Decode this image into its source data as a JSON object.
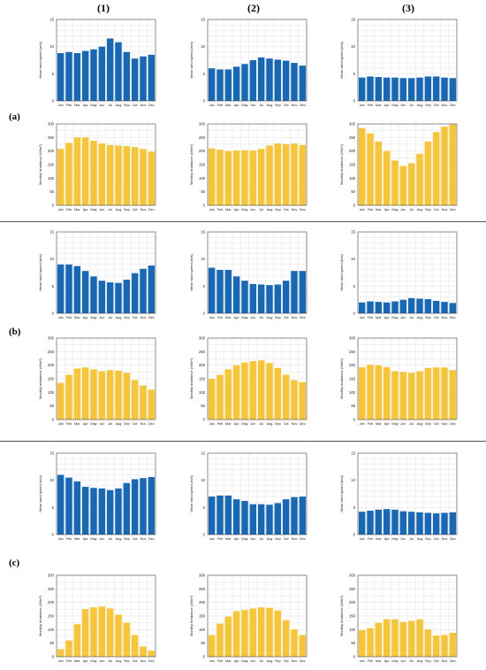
{
  "columns": [
    "(1)",
    "(2)",
    "(3)"
  ],
  "rows": [
    "(a)",
    "(b)",
    "(c)"
  ],
  "colors": {
    "wind": "#1769b7",
    "irradiance": "#f7c535",
    "grid": "#e3e3e3",
    "frame": "#444444"
  },
  "chart_data": [
    {
      "id": "a1-wind",
      "type": "bar",
      "categories": [
        "Jan",
        "Feb",
        "Mar",
        "Apr",
        "May",
        "Jun",
        "Jul",
        "Aug",
        "Sep",
        "Oct",
        "Nov",
        "Dec"
      ],
      "ylabel": "Mean wind speed (m/s)",
      "ylim": [
        0,
        15
      ],
      "yticks": [
        0,
        5,
        10,
        15
      ],
      "values": [
        8.8,
        9.0,
        8.8,
        9.2,
        9.5,
        10.0,
        11.5,
        10.8,
        9.0,
        7.8,
        8.2,
        8.5
      ]
    },
    {
      "id": "a1-irr",
      "type": "bar",
      "categories": [
        "Jan",
        "Feb",
        "Mar",
        "Apr",
        "May",
        "Jun",
        "Jul",
        "Aug",
        "Sep",
        "Oct",
        "Nov",
        "Dec"
      ],
      "ylabel": "Monthly irradiance (W/m²)",
      "ylim": [
        0,
        300
      ],
      "yticks": [
        0,
        50,
        100,
        150,
        200,
        250,
        300
      ],
      "values": [
        208,
        230,
        250,
        250,
        238,
        228,
        222,
        220,
        218,
        215,
        208,
        198
      ]
    },
    {
      "id": "a2-wind",
      "type": "bar",
      "categories": [
        "Jan",
        "Feb",
        "Mar",
        "Apr",
        "May",
        "Jun",
        "Jul",
        "Aug",
        "Sep",
        "Oct",
        "Nov",
        "Dec"
      ],
      "ylabel": "Mean wind speed (m/s)",
      "ylim": [
        0,
        15
      ],
      "yticks": [
        0,
        5,
        10,
        15
      ],
      "values": [
        6.0,
        5.8,
        5.8,
        6.3,
        6.8,
        7.5,
        8.0,
        7.8,
        7.6,
        7.4,
        7.0,
        6.5
      ]
    },
    {
      "id": "a2-irr",
      "type": "bar",
      "categories": [
        "Jan",
        "Feb",
        "Mar",
        "Apr",
        "May",
        "Jun",
        "Jul",
        "Aug",
        "Sep",
        "Oct",
        "Nov",
        "Dec"
      ],
      "ylabel": "Monthly irradiance (W/m²)",
      "ylim": [
        0,
        300
      ],
      "yticks": [
        0,
        50,
        100,
        150,
        200,
        250,
        300
      ],
      "values": [
        210,
        205,
        200,
        202,
        203,
        202,
        208,
        220,
        228,
        225,
        228,
        222
      ]
    },
    {
      "id": "a3-wind",
      "type": "bar",
      "categories": [
        "Jan",
        "Feb",
        "Mar",
        "Apr",
        "May",
        "Jun",
        "Jul",
        "Aug",
        "Sep",
        "Oct",
        "Nov",
        "Dec"
      ],
      "ylabel": "Mean wind speed (m/s)",
      "ylim": [
        0,
        15
      ],
      "yticks": [
        0,
        5,
        10,
        15
      ],
      "values": [
        4.3,
        4.5,
        4.4,
        4.3,
        4.3,
        4.2,
        4.2,
        4.3,
        4.5,
        4.5,
        4.3,
        4.2
      ]
    },
    {
      "id": "a3-irr",
      "type": "bar",
      "categories": [
        "Jan",
        "Feb",
        "Mar",
        "Apr",
        "May",
        "Jun",
        "Jul",
        "Aug",
        "Sep",
        "Oct",
        "Nov",
        "Dec"
      ],
      "ylabel": "Monthly irradiance (W/m²)",
      "ylim": [
        0,
        300
      ],
      "yticks": [
        0,
        50,
        100,
        150,
        200,
        250,
        300
      ],
      "values": [
        285,
        265,
        235,
        200,
        165,
        145,
        155,
        190,
        235,
        270,
        290,
        298
      ]
    },
    {
      "id": "b1-wind",
      "type": "bar",
      "categories": [
        "Jan",
        "Feb",
        "Mar",
        "Apr",
        "May",
        "Jun",
        "Jul",
        "Aug",
        "Sep",
        "Oct",
        "Nov",
        "Dec"
      ],
      "ylabel": "Mean wind speed (m/s)",
      "ylim": [
        0,
        15
      ],
      "yticks": [
        0,
        5,
        10,
        15
      ],
      "values": [
        9.0,
        9.0,
        8.7,
        7.8,
        6.8,
        6.0,
        5.7,
        5.6,
        6.2,
        7.4,
        8.2,
        8.8
      ]
    },
    {
      "id": "b1-irr",
      "type": "bar",
      "categories": [
        "Jan",
        "Feb",
        "Mar",
        "Apr",
        "May",
        "Jun",
        "Jul",
        "Aug",
        "Sep",
        "Oct",
        "Nov",
        "Dec"
      ],
      "ylabel": "Monthly irradiance (W/m²)",
      "ylim": [
        0,
        300
      ],
      "yticks": [
        0,
        50,
        100,
        150,
        200,
        250,
        300
      ],
      "values": [
        135,
        165,
        188,
        192,
        185,
        178,
        182,
        180,
        172,
        145,
        125,
        110
      ]
    },
    {
      "id": "b2-wind",
      "type": "bar",
      "categories": [
        "Jan",
        "Feb",
        "Mar",
        "Apr",
        "May",
        "Jun",
        "Jul",
        "Aug",
        "Sep",
        "Oct",
        "Nov",
        "Dec"
      ],
      "ylabel": "Mean wind speed (m/s)",
      "ylim": [
        0,
        15
      ],
      "yticks": [
        0,
        5,
        10,
        15
      ],
      "values": [
        8.4,
        8.0,
        8.0,
        6.8,
        6.0,
        5.4,
        5.3,
        5.2,
        5.3,
        6.0,
        7.8,
        7.8
      ]
    },
    {
      "id": "b2-irr",
      "type": "bar",
      "categories": [
        "Jan",
        "Feb",
        "Mar",
        "Apr",
        "May",
        "Jun",
        "Jul",
        "Aug",
        "Sep",
        "Oct",
        "Nov",
        "Dec"
      ],
      "ylabel": "Monthly irradiance (W/m²)",
      "ylim": [
        0,
        300
      ],
      "yticks": [
        0,
        50,
        100,
        150,
        200,
        250,
        300
      ],
      "values": [
        150,
        165,
        185,
        200,
        210,
        215,
        218,
        208,
        190,
        165,
        145,
        138
      ]
    },
    {
      "id": "b3-wind",
      "type": "bar",
      "categories": [
        "Jan",
        "Feb",
        "Mar",
        "Apr",
        "May",
        "Jun",
        "Jul",
        "Aug",
        "Sep",
        "Oct",
        "Nov",
        "Dec"
      ],
      "ylabel": "Mean wind speed (m/s)",
      "ylim": [
        0,
        15
      ],
      "yticks": [
        0,
        5,
        10,
        15
      ],
      "values": [
        2.0,
        2.2,
        2.1,
        2.0,
        2.2,
        2.5,
        2.8,
        2.7,
        2.6,
        2.3,
        2.1,
        1.9
      ]
    },
    {
      "id": "b3-irr",
      "type": "bar",
      "categories": [
        "Jan",
        "Feb",
        "Mar",
        "Apr",
        "May",
        "Jun",
        "Jul",
        "Aug",
        "Sep",
        "Oct",
        "Nov",
        "Dec"
      ],
      "ylabel": "Monthly irradiance (W/m²)",
      "ylim": [
        0,
        300
      ],
      "yticks": [
        0,
        50,
        100,
        150,
        200,
        250,
        300
      ],
      "values": [
        192,
        202,
        200,
        193,
        178,
        175,
        172,
        178,
        190,
        192,
        192,
        182
      ]
    },
    {
      "id": "c1-wind",
      "type": "bar",
      "categories": [
        "Jan",
        "Feb",
        "Mar",
        "Apr",
        "May",
        "Jun",
        "Jul",
        "Aug",
        "Sep",
        "Oct",
        "Nov",
        "Dec"
      ],
      "ylabel": "Mean wind speed (m/s)",
      "ylim": [
        0,
        15
      ],
      "yticks": [
        0,
        5,
        10,
        15
      ],
      "values": [
        11.0,
        10.5,
        9.8,
        8.8,
        8.6,
        8.5,
        8.2,
        8.5,
        9.5,
        10.2,
        10.4,
        10.6
      ]
    },
    {
      "id": "c1-irr",
      "type": "bar",
      "categories": [
        "Jan",
        "Feb",
        "Mar",
        "Apr",
        "May",
        "Jun",
        "Jul",
        "Aug",
        "Sep",
        "Oct",
        "Nov",
        "Dec"
      ],
      "ylabel": "Monthly irradiance (W/m²)",
      "ylim": [
        0,
        300
      ],
      "yticks": [
        0,
        50,
        100,
        150,
        200,
        250,
        300
      ],
      "values": [
        28,
        60,
        120,
        175,
        182,
        185,
        178,
        155,
        125,
        80,
        38,
        22
      ]
    },
    {
      "id": "c2-wind",
      "type": "bar",
      "categories": [
        "Jan",
        "Feb",
        "Mar",
        "Apr",
        "May",
        "Jun",
        "Jul",
        "Aug",
        "Sep",
        "Oct",
        "Nov",
        "Dec"
      ],
      "ylabel": "Mean wind speed (m/s)",
      "ylim": [
        0,
        15
      ],
      "yticks": [
        0,
        5,
        10,
        15
      ],
      "values": [
        7.0,
        7.2,
        7.2,
        6.5,
        6.2,
        5.6,
        5.6,
        5.5,
        5.8,
        6.5,
        6.9,
        7.0
      ]
    },
    {
      "id": "c2-irr",
      "type": "bar",
      "categories": [
        "Jan",
        "Feb",
        "Mar",
        "Apr",
        "May",
        "Jun",
        "Jul",
        "Aug",
        "Sep",
        "Oct",
        "Nov",
        "Dec"
      ],
      "ylabel": "Monthly irradiance (W/m²)",
      "ylim": [
        0,
        300
      ],
      "yticks": [
        0,
        50,
        100,
        150,
        200,
        250,
        300
      ],
      "values": [
        80,
        122,
        148,
        168,
        172,
        178,
        182,
        180,
        170,
        135,
        100,
        80
      ]
    },
    {
      "id": "c3-wind",
      "type": "bar",
      "categories": [
        "Jan",
        "Feb",
        "Mar",
        "Apr",
        "May",
        "Jun",
        "Jul",
        "Aug",
        "Sep",
        "Oct",
        "Nov",
        "Dec"
      ],
      "ylabel": "Mean wind speed (m/s)",
      "ylim": [
        0,
        15
      ],
      "yticks": [
        0,
        5,
        10,
        15
      ],
      "values": [
        4.2,
        4.4,
        4.6,
        4.7,
        4.6,
        4.3,
        4.2,
        4.1,
        4.0,
        3.9,
        4.0,
        4.1
      ]
    },
    {
      "id": "c3-irr",
      "type": "bar",
      "categories": [
        "Jan",
        "Feb",
        "Mar",
        "Apr",
        "May",
        "Jun",
        "Jul",
        "Aug",
        "Sep",
        "Oct",
        "Nov",
        "Dec"
      ],
      "ylabel": "Monthly irradiance (W/m²)",
      "ylim": [
        0,
        300
      ],
      "yticks": [
        0,
        50,
        100,
        150,
        200,
        250,
        300
      ],
      "values": [
        98,
        105,
        125,
        138,
        138,
        128,
        132,
        138,
        100,
        78,
        80,
        88
      ]
    }
  ]
}
